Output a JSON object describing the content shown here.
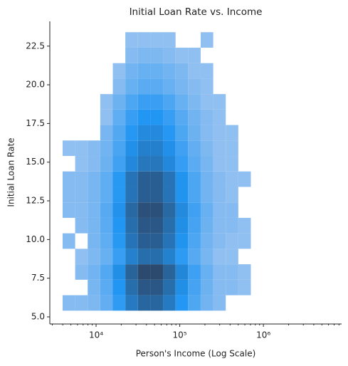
{
  "chart_data": {
    "type": "histogram2d",
    "title": "Initial Loan Rate vs. Income",
    "xlabel": "Person's Income (Log Scale)",
    "ylabel": "Initial Loan Rate",
    "xscale": "log",
    "xlim": [
      2800,
      8600000
    ],
    "ylim": [
      4.54,
      24.1
    ],
    "xticks": [
      {
        "value": 10000,
        "label": "10⁴"
      },
      {
        "value": 100000,
        "label": "10⁵"
      },
      {
        "value": 1000000,
        "label": "10⁶"
      }
    ],
    "yticks": [
      {
        "value": 5,
        "label": "5.0"
      },
      7.5,
      {
        "value": 10,
        "label": "10.0"
      },
      12.5,
      {
        "value": 15,
        "label": "15.0"
      },
      17.5,
      {
        "value": 20,
        "label": "20.0"
      },
      22.5
    ],
    "xbins": [
      3981,
      5623,
      7943,
      11220,
      15849,
      22387,
      31623,
      44668,
      63096,
      89125,
      125893,
      177828,
      251189,
      354813,
      501187,
      707946
    ],
    "ybins": [
      5.4,
      6.4,
      7.4,
      8.4,
      9.4,
      10.4,
      11.4,
      12.4,
      13.4,
      14.4,
      15.4,
      16.4,
      17.4,
      18.4,
      19.4,
      20.4,
      21.4,
      22.4,
      23.4
    ],
    "counts": [
      [
        2,
        2,
        3,
        8,
        24,
        56,
        80,
        80,
        56,
        29,
        13,
        5,
        2,
        0,
        0
      ],
      [
        0,
        0,
        4,
        10,
        30,
        70,
        100,
        100,
        70,
        36,
        16,
        6,
        2,
        2,
        1
      ],
      [
        0,
        2,
        5,
        12,
        36,
        84,
        120,
        120,
        84,
        43,
        19,
        7,
        2,
        2,
        1
      ],
      [
        0,
        1,
        3,
        7,
        21,
        49,
        70,
        70,
        49,
        25,
        11,
        4,
        1,
        1,
        0
      ],
      [
        2,
        0,
        4,
        9,
        27,
        63,
        90,
        90,
        63,
        32,
        14,
        5,
        2,
        1,
        1
      ],
      [
        0,
        2,
        4,
        10,
        30,
        70,
        100,
        100,
        70,
        36,
        16,
        6,
        2,
        2,
        1
      ],
      [
        2,
        2,
        4,
        11,
        33,
        77,
        110,
        110,
        77,
        40,
        18,
        7,
        2,
        2,
        0
      ],
      [
        2,
        2,
        4,
        9,
        27,
        63,
        90,
        90,
        63,
        32,
        14,
        5,
        2,
        1,
        0
      ],
      [
        2,
        2,
        4,
        9,
        27,
        63,
        90,
        90,
        63,
        32,
        14,
        5,
        2,
        1,
        1
      ],
      [
        0,
        1,
        2,
        6,
        18,
        42,
        60,
        60,
        42,
        22,
        10,
        4,
        1,
        1,
        0
      ],
      [
        1,
        1,
        2,
        5,
        15,
        35,
        50,
        50,
        35,
        18,
        8,
        3,
        1,
        1,
        0
      ],
      [
        0,
        0,
        0,
        4,
        12,
        28,
        40,
        40,
        28,
        14,
        6,
        2,
        1,
        1,
        0
      ],
      [
        0,
        0,
        0,
        1,
        9,
        21,
        30,
        30,
        21,
        11,
        5,
        2,
        1,
        0,
        0
      ],
      [
        0,
        0,
        0,
        1,
        6,
        14,
        20,
        20,
        14,
        7,
        3,
        1,
        1,
        0,
        0
      ],
      [
        0,
        0,
        0,
        0,
        2,
        7,
        10,
        10,
        7,
        4,
        2,
        1,
        0,
        0,
        0
      ],
      [
        0,
        0,
        0,
        0,
        1,
        5,
        7,
        7,
        5,
        3,
        1,
        1,
        0,
        0,
        0
      ],
      [
        0,
        0,
        0,
        0,
        0,
        2,
        3,
        3,
        2,
        1,
        1,
        0,
        0,
        0,
        0
      ],
      [
        0,
        0,
        0,
        0,
        0,
        1,
        1,
        1,
        1,
        0,
        0,
        1,
        0,
        0,
        0
      ]
    ],
    "colors": [
      "#a9c8f0",
      "#2196f3",
      "#2c4a6e"
    ]
  }
}
